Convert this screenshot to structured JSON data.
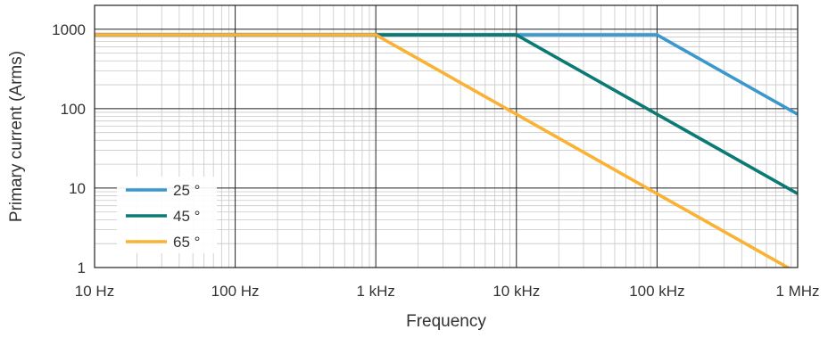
{
  "chart_data": {
    "type": "line",
    "title": "",
    "xlabel": "Frequency",
    "ylabel": "Primary current (Arms)",
    "x_scale": "log",
    "y_scale": "log",
    "xlim_hz": [
      10,
      1000000
    ],
    "ylim": [
      1,
      2000
    ],
    "grid": true,
    "legend_position": "bottom-left",
    "x_ticks": [
      {
        "value": 10,
        "label": "10 Hz"
      },
      {
        "value": 100,
        "label": "100 Hz"
      },
      {
        "value": 1000,
        "label": "1 kHz"
      },
      {
        "value": 10000,
        "label": "10 kHz"
      },
      {
        "value": 100000,
        "label": "100 kHz"
      },
      {
        "value": 1000000,
        "label": "1 MHz"
      }
    ],
    "y_ticks": [
      {
        "value": 1,
        "label": "1"
      },
      {
        "value": 10,
        "label": "10"
      },
      {
        "value": 100,
        "label": "100"
      },
      {
        "value": 1000,
        "label": "1000"
      }
    ],
    "series": [
      {
        "name": "25 °",
        "color": "#3b98cc",
        "points": [
          [
            10,
            850
          ],
          [
            100000,
            850
          ],
          [
            1000000,
            85
          ]
        ]
      },
      {
        "name": "45 °",
        "color": "#0b7a74",
        "points": [
          [
            10,
            850
          ],
          [
            10000,
            850
          ],
          [
            1000000,
            8.5
          ]
        ]
      },
      {
        "name": "65 °",
        "color": "#f9b234",
        "points": [
          [
            10,
            850
          ],
          [
            1000,
            850
          ],
          [
            1000000,
            0.85
          ]
        ]
      }
    ]
  }
}
